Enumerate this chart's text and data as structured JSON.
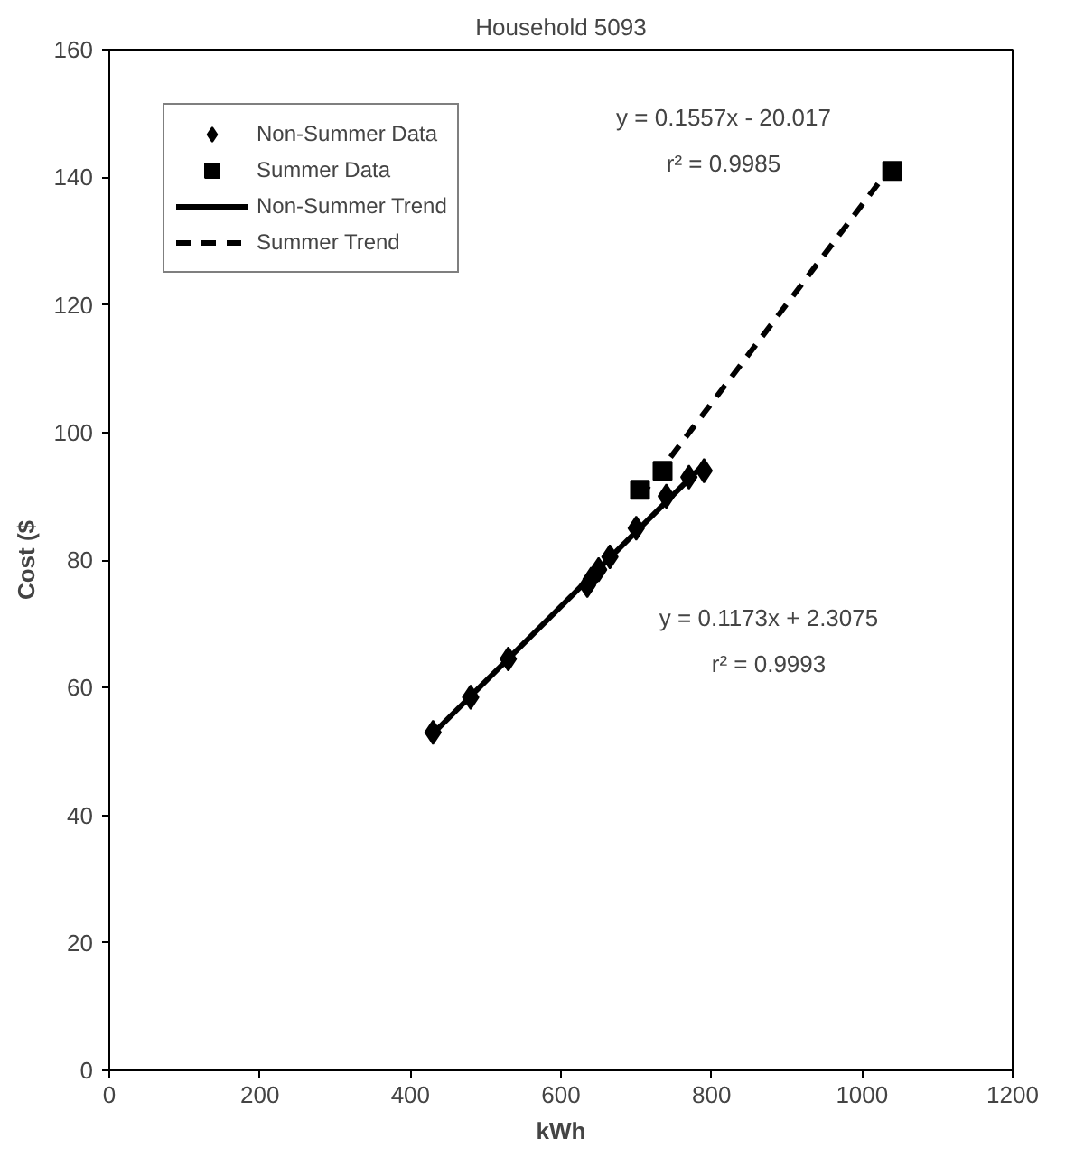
{
  "chart_data": {
    "type": "scatter",
    "title": "Household 5093",
    "xlabel": "kWh",
    "ylabel": "Cost ($",
    "xlim": [
      0,
      1200
    ],
    "xticks": [
      0,
      200,
      400,
      600,
      800,
      1000,
      1200
    ],
    "ylim": [
      0,
      160
    ],
    "yticks": [
      0,
      20,
      40,
      60,
      80,
      100,
      120,
      140,
      160
    ],
    "grid": false,
    "legend": "top left",
    "series": [
      {
        "name": "Non-Summer Data",
        "marker": "diamond",
        "color": "#000000",
        "x": [
          430,
          480,
          530,
          635,
          640,
          650,
          665,
          700,
          740,
          770,
          790
        ],
        "values": [
          53,
          58.5,
          64.5,
          76,
          77,
          78.5,
          80.5,
          85,
          90,
          93,
          94
        ]
      },
      {
        "name": "Summer Data",
        "marker": "square",
        "color": "#000000",
        "x": [
          705,
          735,
          1040
        ],
        "values": [
          91,
          94,
          141
        ]
      },
      {
        "name": "Non-Summer Trend",
        "type": "line",
        "line_style": "solid",
        "color": "#000000",
        "x": [
          430,
          790
        ],
        "values": [
          52.8,
          95.0
        ]
      },
      {
        "name": "Summer Trend",
        "type": "line",
        "line_style": "dashed",
        "color": "#000000",
        "x": [
          705,
          1040
        ],
        "values": [
          89.8,
          141.9
        ]
      }
    ],
    "annotations": [
      "y = 0.1557x - 20.017",
      "r² = 0.9985",
      "y = 0.1173x + 2.3075",
      "r² = 0.9993"
    ]
  }
}
